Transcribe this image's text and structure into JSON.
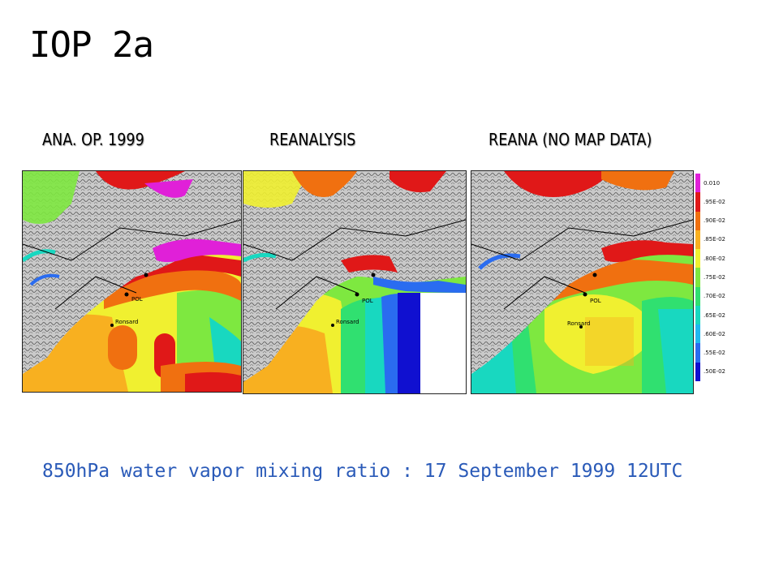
{
  "title": "IOP 2a",
  "panels": [
    {
      "label": "ANA. OP. 1999"
    },
    {
      "label": "REANALYSIS"
    },
    {
      "label": "REANA (NO MAP DATA)"
    }
  ],
  "station_labels": [
    "POL",
    "Ronsard"
  ],
  "legend": {
    "ticks": [
      ".50E-02",
      ".55E-02",
      ".60E-02",
      ".65E-02",
      ".70E-02",
      ".75E-02",
      ".80E-02",
      ".85E-02",
      ".90E-02",
      ".95E-02",
      "0.010"
    ],
    "colors": [
      "#1010d0",
      "#2a6cf0",
      "#20b8f0",
      "#18d8c0",
      "#30e070",
      "#7ee840",
      "#f0f030",
      "#f8b020",
      "#f07010",
      "#e01818",
      "#e020d8"
    ]
  },
  "caption": "850hPa water vapor mixing ratio : 17 September 1999 12UTC"
}
